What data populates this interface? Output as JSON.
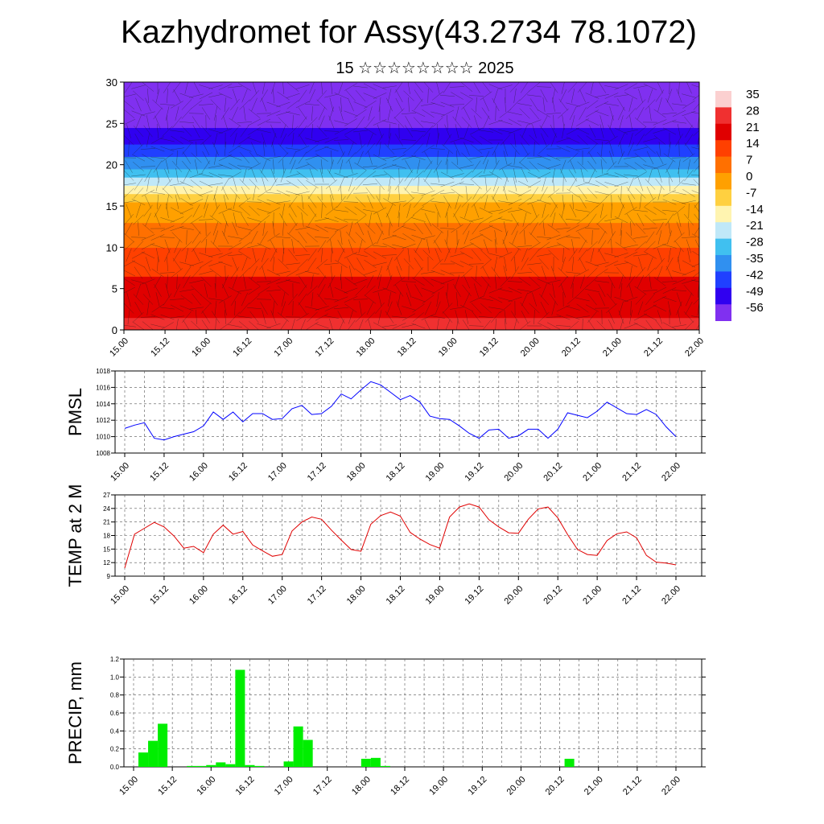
{
  "title": "Kazhydromet for Assy(43.2734 78.1072)",
  "subtitle": "15 ☆☆☆☆☆☆☆☆ 2025",
  "x_tick_labels": [
    "15.00",
    "15.12",
    "16.00",
    "16.12",
    "17.00",
    "17.12",
    "18.00",
    "18.12",
    "19.00",
    "19.12",
    "20.00",
    "20.12",
    "21.00",
    "21.12",
    "22.00"
  ],
  "chart_data": [
    {
      "type": "heatmap",
      "name": "cross-section",
      "ylim": [
        0,
        30
      ],
      "y_ticks": [
        0,
        5,
        10,
        15,
        20,
        25,
        30
      ],
      "colorbar": {
        "labels": [
          "35",
          "28",
          "21",
          "14",
          "7",
          "0",
          "-7",
          "-14",
          "-21",
          "-28",
          "-35",
          "-42",
          "-49",
          "-56"
        ],
        "colors": [
          "#fbd0d0",
          "#f03030",
          "#e00000",
          "#ff4000",
          "#ff7000",
          "#ffa000",
          "#ffd040",
          "#fff4b0",
          "#c0e8f8",
          "#40c0f0",
          "#3090f0",
          "#2040ff",
          "#3000f0",
          "#8030f0"
        ]
      },
      "profile_by_level": [
        {
          "level": 0,
          "value": 30
        },
        {
          "level": 5,
          "value": 24
        },
        {
          "level": 10,
          "value": 14
        },
        {
          "level": 15,
          "value": 2
        },
        {
          "level": 17,
          "value": -10
        },
        {
          "level": 20,
          "value": -30
        },
        {
          "level": 24,
          "value": -48
        },
        {
          "level": 26,
          "value": -52
        },
        {
          "level": 30,
          "value": -58
        }
      ]
    },
    {
      "type": "line",
      "ylabel": "PMSL",
      "ylim": [
        1008,
        1018
      ],
      "y_ticks": [
        1008,
        1010,
        1012,
        1014,
        1016,
        1018
      ],
      "color": "#0000ff",
      "x": [
        0,
        3,
        6,
        9,
        12,
        15,
        18,
        21,
        24,
        27,
        30,
        33,
        36,
        39,
        42,
        45,
        48,
        51,
        54,
        57,
        60,
        63,
        66,
        69,
        72,
        75,
        78,
        81,
        84,
        87,
        90,
        93,
        96,
        99,
        102,
        105,
        108,
        111,
        114,
        117,
        120,
        123,
        126,
        129,
        132,
        135,
        138,
        141,
        144,
        147,
        150,
        153,
        156,
        159,
        162,
        165,
        168
      ],
      "values": [
        1011.0,
        1011.4,
        1011.7,
        1009.8,
        1009.6,
        1010.0,
        1010.3,
        1010.6,
        1011.3,
        1013.0,
        1012.1,
        1013.0,
        1011.8,
        1012.8,
        1012.8,
        1012.1,
        1012.2,
        1013.4,
        1013.8,
        1012.7,
        1012.8,
        1013.7,
        1015.2,
        1014.6,
        1015.7,
        1016.7,
        1016.3,
        1015.4,
        1014.5,
        1015.0,
        1014.2,
        1012.5,
        1012.2,
        1012.1,
        1011.3,
        1010.4,
        1009.8,
        1010.8,
        1010.9,
        1009.8,
        1010.1,
        1010.9,
        1010.9,
        1009.8,
        1010.9,
        1012.9,
        1012.6,
        1012.3,
        1013.1,
        1014.2,
        1013.5,
        1012.8,
        1012.7,
        1013.3,
        1012.7,
        1011.2,
        1010.0
      ]
    },
    {
      "type": "line",
      "ylabel": "TEMP at 2 M",
      "ylim": [
        9,
        27
      ],
      "y_ticks": [
        9,
        12,
        15,
        18,
        21,
        24,
        27
      ],
      "color": "#e00000",
      "x": [
        0,
        3,
        6,
        9,
        12,
        15,
        18,
        21,
        24,
        27,
        30,
        33,
        36,
        39,
        42,
        45,
        48,
        51,
        54,
        57,
        60,
        63,
        66,
        69,
        72,
        75,
        78,
        81,
        84,
        87,
        90,
        93,
        96,
        99,
        102,
        105,
        108,
        111,
        114,
        117,
        120,
        123,
        126,
        129,
        132,
        135,
        138,
        141,
        144,
        147,
        150,
        153,
        156,
        159,
        162,
        165,
        168
      ],
      "values": [
        10.8,
        18.3,
        19.6,
        20.9,
        19.9,
        17.9,
        15.2,
        15.6,
        14.2,
        18.3,
        20.3,
        18.3,
        18.9,
        15.9,
        14.6,
        13.4,
        13.8,
        19.0,
        21.0,
        22.1,
        21.6,
        19.2,
        17.0,
        14.9,
        14.5,
        20.5,
        22.4,
        23.2,
        22.3,
        18.7,
        17.2,
        16.0,
        15.2,
        22.1,
        24.3,
        25.0,
        24.3,
        21.5,
        19.9,
        18.6,
        18.5,
        21.6,
        23.9,
        24.3,
        21.9,
        18.2,
        14.9,
        13.8,
        13.6,
        16.9,
        18.4,
        18.8,
        17.5,
        13.6,
        12.1,
        11.9,
        11.5
      ]
    },
    {
      "type": "bar",
      "ylabel": "PRECIP, mm",
      "ylim": [
        0,
        1.2
      ],
      "y_ticks": [
        "0.0",
        "0.2",
        "0.4",
        "0.6",
        "0.8",
        "1.0",
        "1.2"
      ],
      "color": "#00ee00",
      "x": [
        0,
        3,
        6,
        9,
        12,
        15,
        18,
        21,
        24,
        27,
        30,
        33,
        36,
        39,
        42,
        45,
        48,
        51,
        54,
        57,
        60,
        63,
        66,
        69,
        72,
        75,
        78,
        81,
        84,
        87,
        90,
        93,
        96,
        99,
        102,
        105,
        108,
        111,
        114,
        117,
        120,
        123,
        126,
        129,
        132,
        135,
        138,
        141,
        144,
        147,
        150,
        153,
        156,
        159,
        162,
        165,
        168
      ],
      "values": [
        0,
        0.16,
        0.29,
        0.48,
        0,
        0,
        0.01,
        0.01,
        0.02,
        0.05,
        0.03,
        1.08,
        0.02,
        0.01,
        0,
        0,
        0.06,
        0.45,
        0.3,
        0,
        0,
        0,
        0,
        0,
        0.09,
        0.1,
        0.01,
        0,
        0,
        0,
        0,
        0,
        0,
        0,
        0,
        0,
        0,
        0,
        0,
        0,
        0,
        0,
        0,
        0,
        0,
        0.09,
        0,
        0,
        0,
        0,
        0,
        0,
        0,
        0,
        0,
        0,
        0
      ]
    }
  ]
}
